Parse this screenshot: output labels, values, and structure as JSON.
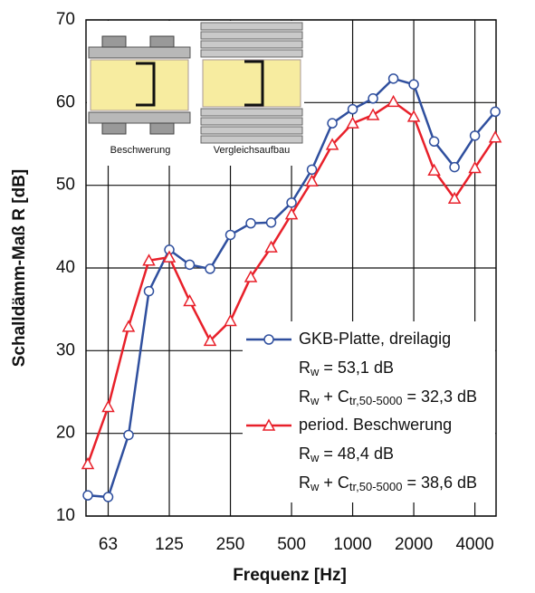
{
  "chart_data": {
    "type": "line",
    "x_label": "Frequenz [Hz]",
    "y_label": "Schalldämm-Maß R [dB]",
    "categories": [
      null,
      "63",
      null,
      null,
      "125",
      null,
      null,
      "250",
      null,
      null,
      "500",
      null,
      null,
      "1000",
      null,
      null,
      "2000",
      null,
      null,
      "4000",
      null
    ],
    "ylim": [
      10,
      70
    ],
    "yticks": [
      10,
      20,
      30,
      40,
      50,
      60,
      70
    ],
    "grid": true,
    "series": [
      {
        "name": "GKB-Platte, dreilagig",
        "color": "#2f4f9e",
        "marker": "circle",
        "values": [
          12.5,
          12.3,
          19.8,
          37.2,
          42.2,
          40.4,
          39.9,
          44.0,
          45.4,
          45.5,
          47.9,
          51.9,
          57.5,
          59.2,
          60.5,
          62.9,
          62.2,
          55.3,
          52.2,
          56.0,
          58.9
        ],
        "notes": [
          [
            "R",
            "w",
            " = 53,1 dB"
          ],
          [
            "R",
            "w",
            " + C",
            "tr,50-5000",
            " = 32,3 dB"
          ]
        ]
      },
      {
        "name": "period. Beschwerung",
        "color": "#e8202a",
        "marker": "triangle",
        "values": [
          16.3,
          23.2,
          32.9,
          40.9,
          41.3,
          36.0,
          31.2,
          33.6,
          38.9,
          42.5,
          46.5,
          50.5,
          54.9,
          57.5,
          58.5,
          60.1,
          58.3,
          51.8,
          48.4,
          52.1,
          55.8
        ],
        "notes": [
          [
            "R",
            "w",
            " = 48,4 dB"
          ],
          [
            "R",
            "w",
            " + C",
            "tr,50-5000",
            " = 38,6 dB"
          ]
        ]
      }
    ],
    "insets": [
      "Beschwerung",
      "Vergleichsaufbau"
    ]
  }
}
